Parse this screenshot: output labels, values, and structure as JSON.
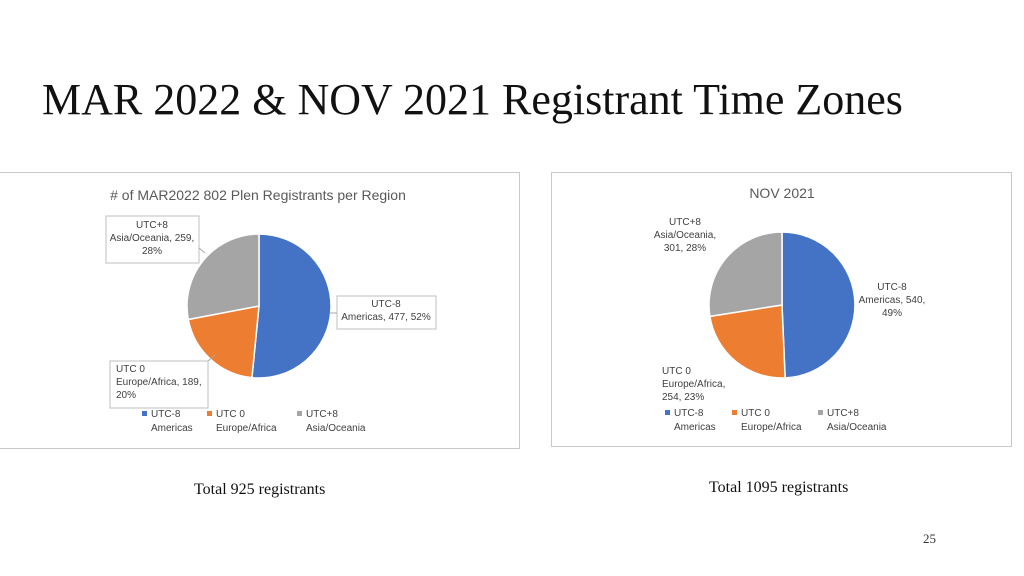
{
  "slide": {
    "title": "MAR 2022 & NOV 2021 Registrant Time Zones",
    "page_number": "25"
  },
  "colors": {
    "americas": "#4472C4",
    "europe_africa": "#ED7D31",
    "asia_oceania": "#A5A5A5"
  },
  "chart_data": [
    {
      "type": "pie",
      "title": "# of MAR2022 802 Plen Registrants per Region",
      "caption": "Total 925 registrants",
      "categories": [
        "UTC-8 Americas",
        "UTC 0 Europe/Africa",
        "UTC+8 Asia/Oceania"
      ],
      "values": [
        477,
        189,
        259
      ],
      "percents": [
        52,
        20,
        28
      ],
      "data_labels": [
        [
          "UTC-8",
          "Americas, 477, 52%"
        ],
        [
          "UTC 0",
          "Europe/Africa, 189,",
          "20%"
        ],
        [
          "UTC+8",
          "Asia/Oceania, 259,",
          "28%"
        ]
      ],
      "legend": {
        "placement": "bottom",
        "entries": [
          [
            "UTC-8",
            "Americas"
          ],
          [
            "UTC 0",
            "Europe/Africa"
          ],
          [
            "UTC+8",
            "Asia/Oceania"
          ]
        ]
      }
    },
    {
      "type": "pie",
      "title": "NOV 2021",
      "caption": "Total 1095 registrants",
      "categories": [
        "UTC-8 Americas",
        "UTC 0 Europe/Africa",
        "UTC+8 Asia/Oceania"
      ],
      "values": [
        540,
        254,
        301
      ],
      "percents": [
        49,
        23,
        28
      ],
      "data_labels": [
        [
          "UTC-8",
          "Americas, 540,",
          "49%"
        ],
        [
          "UTC 0",
          "Europe/Africa,",
          "254, 23%"
        ],
        [
          "UTC+8",
          "Asia/Oceania,",
          "301, 28%"
        ]
      ],
      "legend": {
        "placement": "bottom",
        "entries": [
          [
            "UTC-8",
            "Americas"
          ],
          [
            "UTC 0",
            "Europe/Africa"
          ],
          [
            "UTC+8",
            "Asia/Oceania"
          ]
        ]
      }
    }
  ]
}
